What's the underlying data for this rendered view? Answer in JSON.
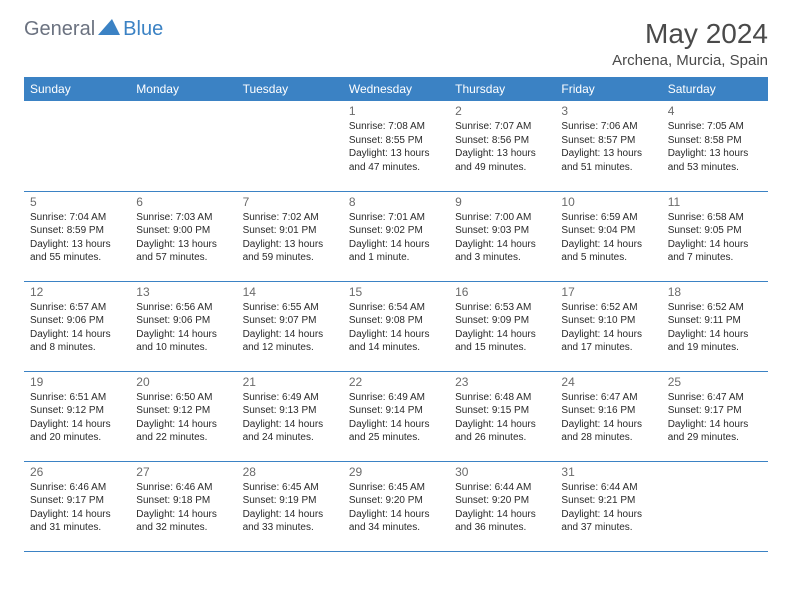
{
  "logo": {
    "text1": "General",
    "text2": "Blue"
  },
  "title": "May 2024",
  "location": "Archena, Murcia, Spain",
  "colors": {
    "header_bg": "#3b82c4",
    "header_text": "#ffffff",
    "day_num": "#6b6b6b",
    "info_text": "#2a2a2a",
    "border": "#3b82c4",
    "title_color": "#4a4a4a"
  },
  "day_headers": [
    "Sunday",
    "Monday",
    "Tuesday",
    "Wednesday",
    "Thursday",
    "Friday",
    "Saturday"
  ],
  "weeks": [
    [
      {
        "num": "",
        "sunrise": "",
        "sunset": "",
        "daylight": ""
      },
      {
        "num": "",
        "sunrise": "",
        "sunset": "",
        "daylight": ""
      },
      {
        "num": "",
        "sunrise": "",
        "sunset": "",
        "daylight": ""
      },
      {
        "num": "1",
        "sunrise": "Sunrise: 7:08 AM",
        "sunset": "Sunset: 8:55 PM",
        "daylight": "Daylight: 13 hours and 47 minutes."
      },
      {
        "num": "2",
        "sunrise": "Sunrise: 7:07 AM",
        "sunset": "Sunset: 8:56 PM",
        "daylight": "Daylight: 13 hours and 49 minutes."
      },
      {
        "num": "3",
        "sunrise": "Sunrise: 7:06 AM",
        "sunset": "Sunset: 8:57 PM",
        "daylight": "Daylight: 13 hours and 51 minutes."
      },
      {
        "num": "4",
        "sunrise": "Sunrise: 7:05 AM",
        "sunset": "Sunset: 8:58 PM",
        "daylight": "Daylight: 13 hours and 53 minutes."
      }
    ],
    [
      {
        "num": "5",
        "sunrise": "Sunrise: 7:04 AM",
        "sunset": "Sunset: 8:59 PM",
        "daylight": "Daylight: 13 hours and 55 minutes."
      },
      {
        "num": "6",
        "sunrise": "Sunrise: 7:03 AM",
        "sunset": "Sunset: 9:00 PM",
        "daylight": "Daylight: 13 hours and 57 minutes."
      },
      {
        "num": "7",
        "sunrise": "Sunrise: 7:02 AM",
        "sunset": "Sunset: 9:01 PM",
        "daylight": "Daylight: 13 hours and 59 minutes."
      },
      {
        "num": "8",
        "sunrise": "Sunrise: 7:01 AM",
        "sunset": "Sunset: 9:02 PM",
        "daylight": "Daylight: 14 hours and 1 minute."
      },
      {
        "num": "9",
        "sunrise": "Sunrise: 7:00 AM",
        "sunset": "Sunset: 9:03 PM",
        "daylight": "Daylight: 14 hours and 3 minutes."
      },
      {
        "num": "10",
        "sunrise": "Sunrise: 6:59 AM",
        "sunset": "Sunset: 9:04 PM",
        "daylight": "Daylight: 14 hours and 5 minutes."
      },
      {
        "num": "11",
        "sunrise": "Sunrise: 6:58 AM",
        "sunset": "Sunset: 9:05 PM",
        "daylight": "Daylight: 14 hours and 7 minutes."
      }
    ],
    [
      {
        "num": "12",
        "sunrise": "Sunrise: 6:57 AM",
        "sunset": "Sunset: 9:06 PM",
        "daylight": "Daylight: 14 hours and 8 minutes."
      },
      {
        "num": "13",
        "sunrise": "Sunrise: 6:56 AM",
        "sunset": "Sunset: 9:06 PM",
        "daylight": "Daylight: 14 hours and 10 minutes."
      },
      {
        "num": "14",
        "sunrise": "Sunrise: 6:55 AM",
        "sunset": "Sunset: 9:07 PM",
        "daylight": "Daylight: 14 hours and 12 minutes."
      },
      {
        "num": "15",
        "sunrise": "Sunrise: 6:54 AM",
        "sunset": "Sunset: 9:08 PM",
        "daylight": "Daylight: 14 hours and 14 minutes."
      },
      {
        "num": "16",
        "sunrise": "Sunrise: 6:53 AM",
        "sunset": "Sunset: 9:09 PM",
        "daylight": "Daylight: 14 hours and 15 minutes."
      },
      {
        "num": "17",
        "sunrise": "Sunrise: 6:52 AM",
        "sunset": "Sunset: 9:10 PM",
        "daylight": "Daylight: 14 hours and 17 minutes."
      },
      {
        "num": "18",
        "sunrise": "Sunrise: 6:52 AM",
        "sunset": "Sunset: 9:11 PM",
        "daylight": "Daylight: 14 hours and 19 minutes."
      }
    ],
    [
      {
        "num": "19",
        "sunrise": "Sunrise: 6:51 AM",
        "sunset": "Sunset: 9:12 PM",
        "daylight": "Daylight: 14 hours and 20 minutes."
      },
      {
        "num": "20",
        "sunrise": "Sunrise: 6:50 AM",
        "sunset": "Sunset: 9:12 PM",
        "daylight": "Daylight: 14 hours and 22 minutes."
      },
      {
        "num": "21",
        "sunrise": "Sunrise: 6:49 AM",
        "sunset": "Sunset: 9:13 PM",
        "daylight": "Daylight: 14 hours and 24 minutes."
      },
      {
        "num": "22",
        "sunrise": "Sunrise: 6:49 AM",
        "sunset": "Sunset: 9:14 PM",
        "daylight": "Daylight: 14 hours and 25 minutes."
      },
      {
        "num": "23",
        "sunrise": "Sunrise: 6:48 AM",
        "sunset": "Sunset: 9:15 PM",
        "daylight": "Daylight: 14 hours and 26 minutes."
      },
      {
        "num": "24",
        "sunrise": "Sunrise: 6:47 AM",
        "sunset": "Sunset: 9:16 PM",
        "daylight": "Daylight: 14 hours and 28 minutes."
      },
      {
        "num": "25",
        "sunrise": "Sunrise: 6:47 AM",
        "sunset": "Sunset: 9:17 PM",
        "daylight": "Daylight: 14 hours and 29 minutes."
      }
    ],
    [
      {
        "num": "26",
        "sunrise": "Sunrise: 6:46 AM",
        "sunset": "Sunset: 9:17 PM",
        "daylight": "Daylight: 14 hours and 31 minutes."
      },
      {
        "num": "27",
        "sunrise": "Sunrise: 6:46 AM",
        "sunset": "Sunset: 9:18 PM",
        "daylight": "Daylight: 14 hours and 32 minutes."
      },
      {
        "num": "28",
        "sunrise": "Sunrise: 6:45 AM",
        "sunset": "Sunset: 9:19 PM",
        "daylight": "Daylight: 14 hours and 33 minutes."
      },
      {
        "num": "29",
        "sunrise": "Sunrise: 6:45 AM",
        "sunset": "Sunset: 9:20 PM",
        "daylight": "Daylight: 14 hours and 34 minutes."
      },
      {
        "num": "30",
        "sunrise": "Sunrise: 6:44 AM",
        "sunset": "Sunset: 9:20 PM",
        "daylight": "Daylight: 14 hours and 36 minutes."
      },
      {
        "num": "31",
        "sunrise": "Sunrise: 6:44 AM",
        "sunset": "Sunset: 9:21 PM",
        "daylight": "Daylight: 14 hours and 37 minutes."
      },
      {
        "num": "",
        "sunrise": "",
        "sunset": "",
        "daylight": ""
      }
    ]
  ]
}
